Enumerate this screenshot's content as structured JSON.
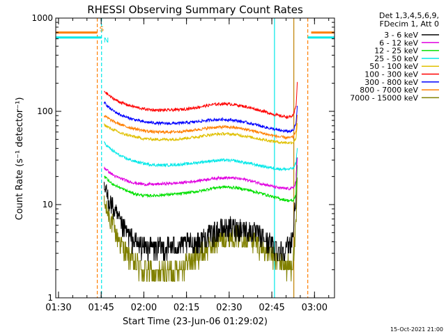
{
  "chart_data": {
    "type": "line",
    "title": "RHESSI Observing Summary Count Rates",
    "xlabel": "Start Time (23-Jun-06 01:29:02)",
    "ylabel": "Count Rate (s⁻¹ detector⁻¹)",
    "y_scale": "log",
    "ylim": [
      1,
      1000
    ],
    "xlim_minutes": [
      0,
      98
    ],
    "x_ticks": [
      {
        "label": "01:30",
        "minute": 0.97
      },
      {
        "label": "01:45",
        "minute": 15.97
      },
      {
        "label": "02:00",
        "minute": 30.97
      },
      {
        "label": "02:15",
        "minute": 45.97
      },
      {
        "label": "02:30",
        "minute": 60.97
      },
      {
        "label": "02:45",
        "minute": 75.97
      },
      {
        "label": "03:00",
        "minute": 90.97
      }
    ],
    "y_ticks": [
      {
        "label": "1",
        "value": 1
      },
      {
        "label": "10",
        "value": 10
      },
      {
        "label": "100",
        "value": 100
      },
      {
        "label": "1000",
        "value": 1000
      }
    ],
    "legend_header": [
      "Det 1,3,4,5,6,9,",
      "FDecim 1, Att 0"
    ],
    "legend_position": "top-right",
    "timestamp": "15-Oct-2021 21:00",
    "x_minutes": [
      17,
      19,
      21,
      23,
      25,
      28,
      31,
      35,
      39,
      43,
      47,
      51,
      55,
      59,
      63,
      67,
      71,
      75,
      79,
      82,
      83.5,
      84.5,
      85
    ],
    "series": [
      {
        "name": "3 - 6 keV",
        "color": "#000000",
        "values": [
          15,
          11,
          8,
          6,
          5,
          4,
          3.6,
          3.4,
          3.5,
          3.6,
          3.8,
          4.2,
          5,
          5.6,
          5.8,
          5.5,
          4.8,
          4,
          3.3,
          3.5,
          5,
          15,
          35
        ]
      },
      {
        "name": "6 - 12 keV",
        "color": "#e000e0",
        "values": [
          25,
          22,
          20,
          19,
          18,
          17,
          16.5,
          16.5,
          16.8,
          17,
          17.5,
          18.2,
          19,
          19.5,
          19.2,
          18.5,
          17.2,
          16,
          15,
          14.8,
          15,
          18,
          35
        ]
      },
      {
        "name": "12 - 25 keV",
        "color": "#00e000",
        "values": [
          20,
          17.5,
          16,
          15,
          14,
          13,
          12.5,
          12.5,
          12.8,
          13,
          13.5,
          14,
          15,
          15.5,
          15.2,
          14.5,
          13.5,
          12.5,
          11.5,
          11,
          11,
          13,
          30
        ]
      },
      {
        "name": "25 - 50 keV",
        "color": "#00e8e8",
        "values": [
          46,
          40,
          36,
          33,
          31,
          29,
          27.5,
          26.5,
          26.5,
          26.8,
          27.5,
          28.5,
          29.5,
          30,
          29.5,
          28,
          26.5,
          25,
          24,
          24,
          24.5,
          28,
          45
        ]
      },
      {
        "name": "50 - 100 keV",
        "color": "#e0c000",
        "values": [
          72,
          66,
          62,
          58,
          56,
          53,
          51,
          50,
          50,
          50.5,
          52,
          54,
          56.5,
          57.5,
          56.5,
          54,
          51,
          48.5,
          46.5,
          46,
          46.5,
          52,
          80
        ]
      },
      {
        "name": "100 - 300 keV",
        "color": "#ff0000",
        "values": [
          165,
          145,
          133,
          124,
          118,
          111,
          106,
          103,
          103,
          104,
          107,
          112,
          118,
          121,
          118,
          112,
          104,
          96,
          89,
          87,
          90,
          115,
          230
        ]
      },
      {
        "name": "300 - 800 keV",
        "color": "#0000ff",
        "values": [
          125,
          108,
          98,
          91,
          86,
          81,
          77,
          75,
          74,
          74.5,
          76,
          78.5,
          81,
          82,
          80,
          76,
          71,
          66,
          62,
          61,
          62,
          75,
          120
        ]
      },
      {
        "name": "800 - 7000 keV",
        "color": "#ff7f00",
        "values": [
          90,
          82,
          76,
          72,
          68,
          65,
          62,
          60,
          60,
          60.5,
          62,
          64.5,
          67,
          68,
          67,
          64,
          60,
          56,
          53,
          52,
          53,
          62,
          95
        ]
      },
      {
        "name": "7000 - 15000 keV",
        "color": "#808000",
        "values": [
          10,
          7.5,
          5,
          3.8,
          3,
          2.4,
          2,
          1.8,
          1.9,
          2.1,
          2.5,
          3,
          3.8,
          4.5,
          4.8,
          4.6,
          3.8,
          3,
          2.4,
          2.2,
          2.5,
          6,
          20
        ]
      }
    ],
    "attenuator_state": {
      "label": "S",
      "color": "#ff7f00",
      "value": 700,
      "segments": [
        [
          0,
          14.6
        ],
        [
          89.8,
          98
        ]
      ]
    },
    "night_state": {
      "label": "N",
      "color": "#00e8e8",
      "value": 620,
      "segments": [
        [
          0,
          16.1
        ],
        [
          88.6,
          98
        ]
      ]
    },
    "vertical_markers": [
      {
        "minute": 14.6,
        "color": "#ff7f00",
        "style": "dashed"
      },
      {
        "minute": 16.1,
        "color": "#00e8e8",
        "style": "dashed"
      },
      {
        "minute": 76.9,
        "color": "#00e8e8",
        "style": "solid"
      },
      {
        "minute": 83.7,
        "color": "#c08000",
        "style": "solid"
      },
      {
        "minute": 88.6,
        "color": "#ff7f00",
        "style": "dashed"
      }
    ]
  }
}
